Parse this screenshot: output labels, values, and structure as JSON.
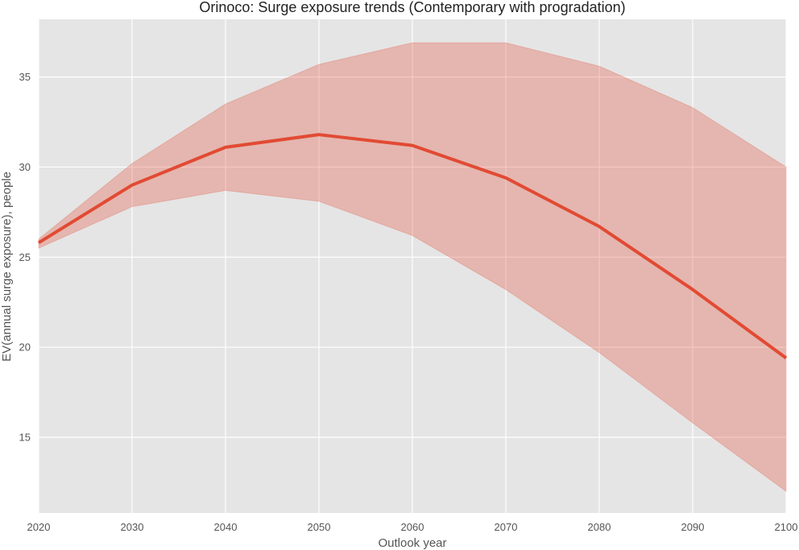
{
  "chart_data": {
    "type": "line",
    "title": "Orinoco: Surge exposure trends (Contemporary with progradation)",
    "xlabel": "Outlook year",
    "ylabel": "EV(annual surge exposure), people",
    "x": [
      2020,
      2030,
      2040,
      2050,
      2060,
      2070,
      2080,
      2090,
      2100
    ],
    "series": [
      {
        "values": [
          25.8,
          29.0,
          31.1,
          31.8,
          31.2,
          29.4,
          26.7,
          23.2,
          19.4
        ],
        "lower": [
          25.5,
          27.8,
          28.7,
          28.1,
          26.2,
          23.2,
          19.7,
          15.8,
          12.0
        ],
        "upper": [
          26.0,
          30.2,
          33.5,
          35.7,
          36.9,
          36.9,
          35.6,
          33.3,
          30.0
        ]
      }
    ],
    "xlim": [
      2020,
      2100
    ],
    "ylim": [
      10.8,
      38.2
    ],
    "xticks": [
      "2020",
      "2030",
      "2040",
      "2050",
      "2060",
      "2070",
      "2080",
      "2090",
      "2100"
    ],
    "yticks": [
      "15",
      "20",
      "25",
      "30",
      "35"
    ],
    "grid": true,
    "legend": "none",
    "colors": {
      "background": "#e5e5e5",
      "grid": "#ffffff",
      "line": "#e24a33",
      "band": "#e24a33"
    }
  }
}
